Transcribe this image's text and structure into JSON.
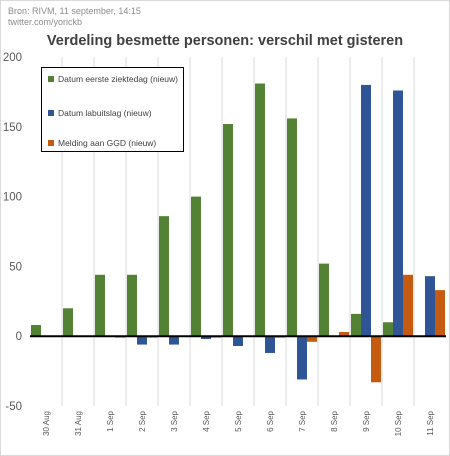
{
  "header": {
    "source_line1": "Bron: RIVM, 11 september, 14:15",
    "source_line2": "twitter.com/yorickb",
    "title": "Verdeling besmette personen: verschil met gisteren"
  },
  "chart_data": {
    "type": "bar",
    "categories": [
      "30 Aug",
      "31 Aug",
      "1 Sep",
      "2 Sep",
      "3 Sep",
      "4 Sep",
      "5 Sep",
      "6 Sep",
      "7 Sep",
      "8 Sep",
      "9 Sep",
      "10 Sep",
      "11 Sep"
    ],
    "series": [
      {
        "name": "Datum eerste ziektedag (nieuw)",
        "color": "#548235",
        "values": [
          8,
          20,
          44,
          44,
          86,
          100,
          152,
          181,
          156,
          52,
          16,
          10,
          null
        ]
      },
      {
        "name": "Datum labuitslag (nieuw)",
        "color": "#2f5597",
        "values": [
          0,
          0,
          0,
          -6,
          -6,
          -2,
          -7,
          -12,
          -31,
          0,
          180,
          176,
          43
        ]
      },
      {
        "name": "Melding aan GGD (nieuw)",
        "color": "#c55a11",
        "values": [
          0,
          0,
          -1,
          -1,
          0,
          -1,
          0,
          -1,
          -4,
          3,
          -33,
          44,
          33
        ]
      }
    ],
    "ylim": [
      -50,
      200
    ],
    "yticks": [
      -50,
      0,
      50,
      100,
      150,
      200
    ],
    "grid": "vertical category separators",
    "legend_position": "top-left"
  }
}
